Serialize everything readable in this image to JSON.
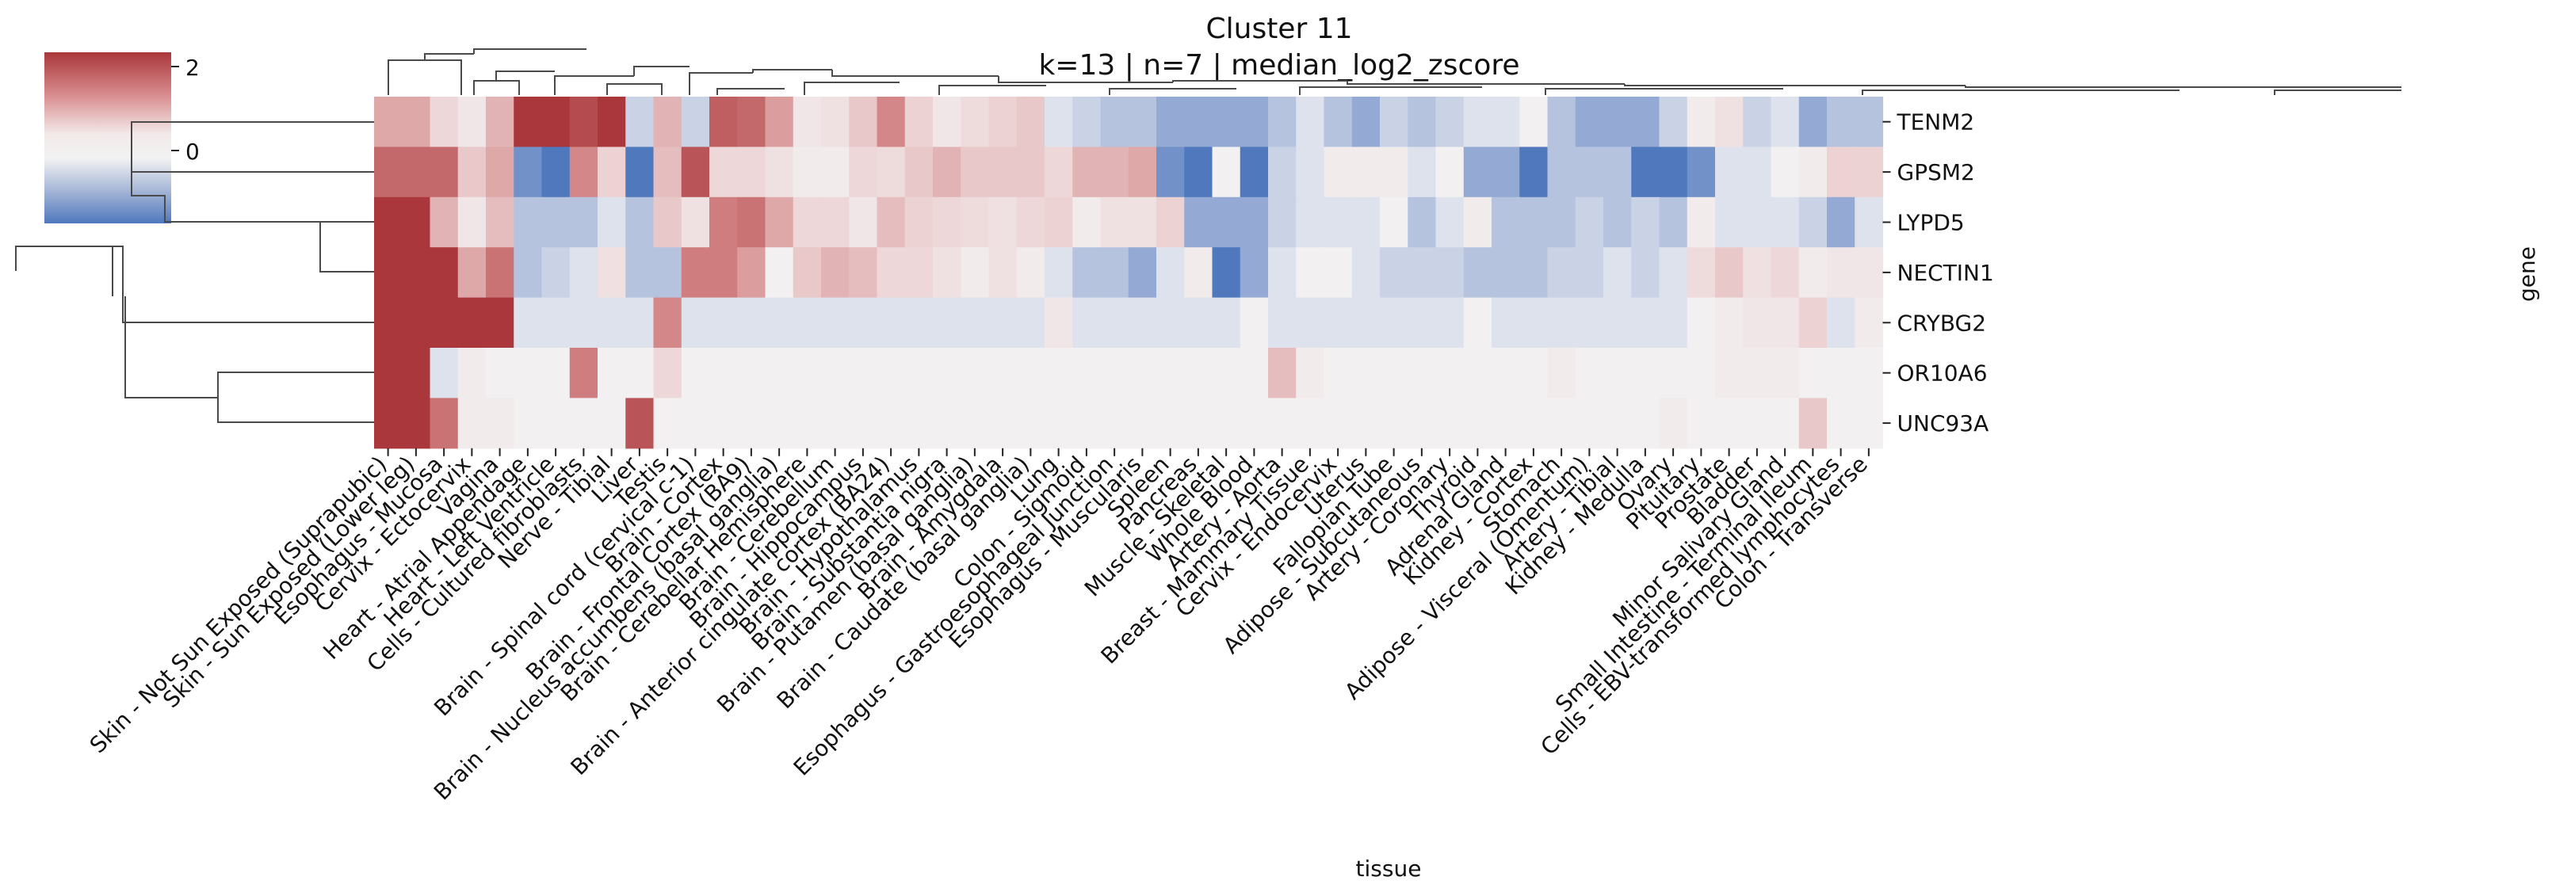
{
  "chart_data": {
    "type": "heatmap",
    "title": "Cluster 11",
    "subtitle": "k=13 | n=7 | median_log2_zscore",
    "xlabel": "tissue",
    "ylabel": "gene",
    "colorbar": {
      "ticks": [
        2,
        0
      ],
      "range": [
        -0.6,
        2.1
      ],
      "colormap": "vlag"
    },
    "rows": [
      "TENM2",
      "GPSM2",
      "LYPD5",
      "NECTIN1",
      "CRYBG2",
      "OR10A6",
      "UNC93A"
    ],
    "columns": [
      "Skin - Not Sun Exposed (Suprapubic)",
      "Skin - Sun Exposed (Lower leg)",
      "Esophagus - Mucosa",
      "Cervix - Ectocervix",
      "Vagina",
      "Heart - Atrial Appendage",
      "Heart - Left Ventricle",
      "Cells - Cultured fibroblasts",
      "Nerve - Tibial",
      "Liver",
      "Testis",
      "Brain - Spinal cord (cervical c-1)",
      "Brain - Cortex",
      "Brain - Frontal Cortex (BA9)",
      "Brain - Nucleus accumbens (basal ganglia)",
      "Brain - Cerebellar Hemisphere",
      "Brain - Cerebellum",
      "Brain - Hippocampus",
      "Brain - Anterior cingulate cortex (BA24)",
      "Brain - Hypothalamus",
      "Brain - Substantia nigra",
      "Brain - Putamen (basal ganglia)",
      "Brain - Amygdala",
      "Brain - Caudate (basal ganglia)",
      "Lung",
      "Colon - Sigmoid",
      "Esophagus - Gastroesophageal Junction",
      "Esophagus - Muscularis",
      "Spleen",
      "Pancreas",
      "Muscle - Skeletal",
      "Whole Blood",
      "Artery - Aorta",
      "Breast - Mammary Tissue",
      "Cervix - Endocervix",
      "Uterus",
      "Fallopian Tube",
      "Adipose - Subcutaneous",
      "Artery - Coronary",
      "Thyroid",
      "Adrenal Gland",
      "Kidney - Cortex",
      "Stomach",
      "Adipose - Visceral (Omentum)",
      "Artery - Tibial",
      "Kidney - Medulla",
      "Ovary",
      "Pituitary",
      "Prostate",
      "Bladder",
      "Minor Salivary Gland",
      "Small Intestine - Terminal Ileum",
      "Cells - EBV-transformed lymphocytes",
      "Colon - Transverse"
    ],
    "values": [
      [
        1.0,
        1.0,
        0.5,
        0.2,
        0.9,
        2.1,
        2.1,
        1.9,
        2.1,
        -0.2,
        0.9,
        -0.2,
        1.7,
        1.6,
        1.1,
        0.2,
        0.3,
        0.7,
        1.3,
        0.6,
        0.2,
        0.4,
        0.6,
        0.7,
        -0.1,
        -0.2,
        -0.3,
        -0.3,
        -0.4,
        -0.4,
        -0.4,
        -0.4,
        -0.3,
        -0.1,
        -0.3,
        -0.4,
        -0.2,
        -0.3,
        -0.2,
        -0.1,
        -0.1,
        0.0,
        -0.3,
        -0.4,
        -0.4,
        -0.4,
        -0.2,
        0.1,
        0.3,
        -0.2,
        -0.1,
        -0.4,
        -0.3,
        -0.3
      ],
      [
        1.6,
        1.6,
        1.6,
        0.7,
        1.0,
        -0.5,
        -0.8,
        1.3,
        0.6,
        -0.8,
        0.8,
        1.8,
        0.5,
        0.5,
        0.3,
        0.1,
        0.1,
        0.5,
        0.4,
        0.7,
        0.9,
        0.7,
        0.7,
        0.7,
        0.5,
        0.9,
        0.9,
        1.0,
        -0.5,
        -0.9,
        0.0,
        -0.6,
        -0.2,
        -0.1,
        0.1,
        0.1,
        0.1,
        -0.1,
        0.0,
        -0.4,
        -0.4,
        -0.7,
        -0.3,
        -0.3,
        -0.3,
        -0.6,
        -0.6,
        -0.5,
        -0.1,
        -0.1,
        0.0,
        0.1,
        0.6,
        0.6
      ],
      [
        2.1,
        2.1,
        0.9,
        0.2,
        0.8,
        -0.3,
        -0.3,
        -0.3,
        -0.1,
        -0.3,
        0.7,
        0.3,
        1.4,
        1.5,
        1.0,
        0.5,
        0.5,
        0.2,
        0.8,
        0.6,
        0.5,
        0.4,
        0.3,
        0.5,
        0.6,
        0.1,
        0.3,
        0.3,
        0.6,
        -0.4,
        -0.4,
        -0.4,
        -0.2,
        -0.1,
        -0.1,
        -0.1,
        0.0,
        -0.3,
        -0.1,
        0.1,
        -0.3,
        -0.3,
        -0.3,
        -0.2,
        -0.3,
        -0.2,
        -0.3,
        0.1,
        -0.1,
        -0.1,
        -0.1,
        -0.2,
        -0.4,
        -0.1
      ],
      [
        2.1,
        2.1,
        2.1,
        1.0,
        1.5,
        -0.3,
        -0.2,
        -0.1,
        0.3,
        -0.3,
        -0.3,
        1.4,
        1.4,
        1.1,
        0.0,
        0.7,
        0.9,
        0.8,
        0.5,
        0.5,
        0.3,
        0.1,
        0.3,
        0.1,
        -0.1,
        -0.3,
        -0.3,
        -0.4,
        -0.1,
        0.1,
        -0.8,
        -0.4,
        -0.1,
        0.0,
        0.0,
        -0.1,
        -0.2,
        -0.2,
        -0.2,
        -0.3,
        -0.3,
        -0.3,
        -0.2,
        -0.2,
        -0.1,
        -0.2,
        -0.1,
        0.4,
        0.7,
        0.3,
        0.5,
        0.1,
        0.2,
        0.2
      ],
      [
        2.1,
        2.1,
        2.1,
        2.1,
        2.1,
        -0.1,
        -0.1,
        -0.1,
        -0.1,
        -0.1,
        1.3,
        -0.1,
        -0.1,
        -0.1,
        -0.1,
        -0.1,
        -0.1,
        -0.1,
        -0.1,
        -0.1,
        -0.1,
        -0.1,
        -0.1,
        -0.1,
        0.2,
        -0.1,
        -0.1,
        -0.1,
        -0.1,
        -0.1,
        -0.1,
        0.0,
        -0.1,
        -0.1,
        -0.1,
        -0.1,
        -0.1,
        -0.1,
        -0.1,
        0.0,
        -0.1,
        -0.1,
        -0.1,
        -0.1,
        -0.1,
        -0.1,
        -0.1,
        0.0,
        0.1,
        0.2,
        0.2,
        0.6,
        -0.1,
        0.1
      ],
      [
        2.1,
        2.1,
        -0.1,
        0.1,
        0.0,
        0.0,
        0.0,
        1.4,
        0.0,
        0.0,
        0.5,
        0.0,
        0.0,
        0.0,
        0.0,
        0.0,
        0.0,
        0.0,
        0.0,
        0.0,
        0.0,
        0.0,
        0.0,
        0.0,
        0.0,
        0.0,
        0.0,
        0.0,
        0.0,
        0.0,
        0.0,
        0.0,
        0.8,
        0.1,
        0.0,
        0.0,
        0.0,
        0.0,
        0.0,
        0.0,
        0.0,
        0.0,
        0.1,
        0.0,
        0.0,
        0.0,
        0.0,
        0.0,
        0.1,
        0.1,
        0.1,
        0.0,
        0.0,
        0.0
      ],
      [
        2.1,
        2.1,
        1.5,
        0.1,
        0.1,
        0.0,
        0.0,
        0.0,
        0.0,
        1.8,
        0.0,
        0.0,
        0.0,
        0.0,
        0.0,
        0.0,
        0.0,
        0.0,
        0.0,
        0.0,
        0.0,
        0.0,
        0.0,
        0.0,
        0.0,
        0.0,
        0.0,
        0.0,
        0.0,
        0.0,
        0.0,
        0.0,
        0.0,
        0.0,
        0.0,
        0.0,
        0.0,
        0.0,
        0.0,
        0.0,
        0.0,
        0.0,
        0.0,
        0.0,
        0.0,
        0.0,
        0.1,
        0.0,
        0.0,
        0.0,
        0.0,
        0.7,
        0.0,
        0.0
      ]
    ]
  }
}
